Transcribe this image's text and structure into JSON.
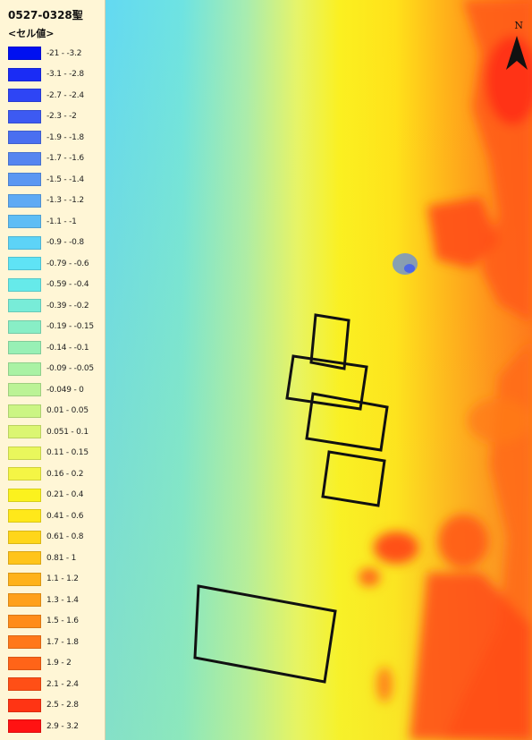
{
  "legend": {
    "title": "0527-0328聖",
    "subtitle": "<セル値>",
    "items": [
      {
        "label": "-21 - -3.2",
        "color": "#0010f0"
      },
      {
        "label": "-3.1 - -2.8",
        "color": "#1a2cf5"
      },
      {
        "label": "-2.7 - -2.4",
        "color": "#2e45f5"
      },
      {
        "label": "-2.3 - -2",
        "color": "#3d5af2"
      },
      {
        "label": "-1.9 - -1.8",
        "color": "#4a6ff0"
      },
      {
        "label": "-1.7 - -1.6",
        "color": "#5585f0"
      },
      {
        "label": "-1.5 - -1.4",
        "color": "#5b97f2"
      },
      {
        "label": "-1.3 - -1.2",
        "color": "#5eaaf4"
      },
      {
        "label": "-1.1 - -1",
        "color": "#5ebdf5"
      },
      {
        "label": "-0.9 - -0.8",
        "color": "#5dd3f7"
      },
      {
        "label": "-0.79 - -0.6",
        "color": "#5fe3f5"
      },
      {
        "label": "-0.59 - -0.4",
        "color": "#66eaea"
      },
      {
        "label": "-0.39 - -0.2",
        "color": "#78ecd8"
      },
      {
        "label": "-0.19 - -0.15",
        "color": "#88eec6"
      },
      {
        "label": "-0.14 - -0.1",
        "color": "#98f0b5"
      },
      {
        "label": "-0.09 - -0.05",
        "color": "#a9f2a4"
      },
      {
        "label": "-0.049 - 0",
        "color": "#bbf396"
      },
      {
        "label": "0.01 - 0.05",
        "color": "#cbf584"
      },
      {
        "label": "0.051 - 0.1",
        "color": "#dbf672"
      },
      {
        "label": "0.11 - 0.15",
        "color": "#e9f75c"
      },
      {
        "label": "0.16 - 0.2",
        "color": "#f4f545"
      },
      {
        "label": "0.21 - 0.4",
        "color": "#fbf21e"
      },
      {
        "label": "0.41 - 0.6",
        "color": "#ffe81a"
      },
      {
        "label": "0.61 - 0.8",
        "color": "#ffd61a"
      },
      {
        "label": "0.81 - 1",
        "color": "#ffc41a"
      },
      {
        "label": "1.1 - 1.2",
        "color": "#ffb21a"
      },
      {
        "label": "1.3 - 1.4",
        "color": "#ffa01a"
      },
      {
        "label": "1.5 - 1.6",
        "color": "#ff8c1a"
      },
      {
        "label": "1.7 - 1.8",
        "color": "#ff781a"
      },
      {
        "label": "1.9 - 2",
        "color": "#ff6418"
      },
      {
        "label": "2.1 - 2.4",
        "color": "#ff4f16"
      },
      {
        "label": "2.5 - 2.8",
        "color": "#ff3414"
      },
      {
        "label": "2.9 - 3.2",
        "color": "#ff1212"
      }
    ]
  },
  "north_arrow": {
    "letter": "N",
    "icon": "north-arrow-icon"
  }
}
